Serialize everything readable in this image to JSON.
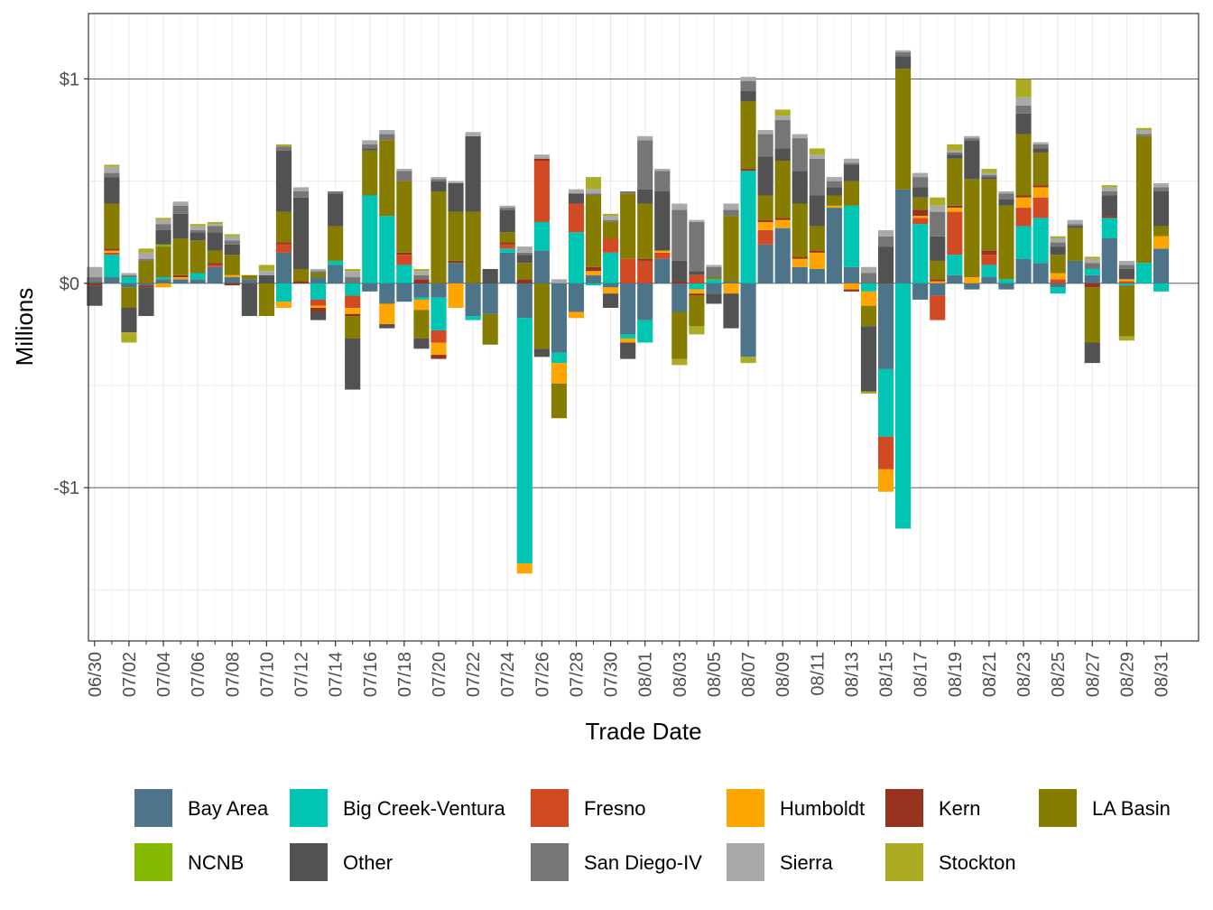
{
  "chart_data": {
    "type": "bar",
    "stacked": true,
    "title": "",
    "xlabel": "Trade Date",
    "ylabel": "Millions",
    "ylim": [
      -1.75,
      1.32
    ],
    "y_ticks": [
      {
        "value": 1,
        "label": "$1"
      },
      {
        "value": 0,
        "label": "$0"
      },
      {
        "value": -1,
        "label": "-$1"
      }
    ],
    "grid": true,
    "legend_position": "bottom",
    "categories": [
      "06/30",
      "07/01",
      "07/02",
      "07/03",
      "07/04",
      "07/05",
      "07/06",
      "07/07",
      "07/08",
      "07/09",
      "07/10",
      "07/11",
      "07/12",
      "07/13",
      "07/14",
      "07/15",
      "07/16",
      "07/17",
      "07/18",
      "07/19",
      "07/20",
      "07/21",
      "07/22",
      "07/23",
      "07/24",
      "07/25",
      "07/26",
      "07/27",
      "07/28",
      "07/29",
      "07/30",
      "07/31",
      "08/01",
      "08/02",
      "08/03",
      "08/04",
      "08/05",
      "08/06",
      "08/07",
      "08/08",
      "08/09",
      "08/10",
      "08/11",
      "08/12",
      "08/13",
      "08/14",
      "08/15",
      "08/16",
      "08/17",
      "08/18",
      "08/19",
      "08/20",
      "08/21",
      "08/22",
      "08/23",
      "08/24",
      "08/25",
      "08/26",
      "08/27",
      "08/28",
      "08/29",
      "08/30",
      "08/31"
    ],
    "tick_labels": [
      "06/30",
      "07/02",
      "07/04",
      "07/06",
      "07/08",
      "07/10",
      "07/12",
      "07/14",
      "07/16",
      "07/18",
      "07/20",
      "07/22",
      "07/24",
      "07/26",
      "07/28",
      "07/30",
      "08/01",
      "08/03",
      "08/05",
      "08/07",
      "08/09",
      "08/11",
      "08/13",
      "08/15",
      "08/17",
      "08/19",
      "08/21",
      "08/23",
      "08/25",
      "08/27",
      "08/29",
      "08/31"
    ],
    "series": [
      {
        "name": "Bay Area",
        "color": "#4e7489",
        "values": [
          0.01,
          0.03,
          -0.02,
          -0.01,
          0.02,
          0.02,
          0.02,
          0.08,
          0.03,
          0.02,
          0,
          0.15,
          0,
          0.03,
          0.09,
          0,
          -0.04,
          -0.1,
          -0.09,
          -0.07,
          -0.07,
          0.1,
          -0.16,
          -0.15,
          0.15,
          -0.17,
          0.16,
          -0.34,
          -0.14,
          0.04,
          -0.02,
          -0.25,
          -0.18,
          0.12,
          -0.14,
          0,
          -0.05,
          0.01,
          -0.36,
          0.19,
          0.27,
          0.08,
          0.07,
          0.37,
          0.08,
          0,
          -0.42,
          0.46,
          -0.08,
          -0.06,
          0.04,
          -0.03,
          0.03,
          -0.03,
          0.12,
          0.1,
          -0.02,
          0.11,
          0.04,
          0.22,
          0,
          0,
          0.17
        ]
      },
      {
        "name": "Big Creek-Ventura",
        "color": "#00c5b2",
        "values": [
          0,
          0.11,
          0.03,
          0,
          0.01,
          0,
          0.03,
          0,
          0,
          0,
          0,
          -0.09,
          0,
          -0.08,
          0.02,
          -0.06,
          0.43,
          0.33,
          0.09,
          -0.01,
          -0.16,
          0,
          -0.02,
          0,
          0.02,
          -1.2,
          0.14,
          -0.05,
          0.25,
          -0.01,
          0.15,
          -0.02,
          -0.11,
          0,
          0,
          -0.03,
          0.02,
          0,
          0.55,
          0,
          0,
          0,
          0,
          0,
          0.3,
          -0.04,
          -0.33,
          -1.2,
          0.29,
          0,
          0.1,
          0,
          0.06,
          0.02,
          0.16,
          0.22,
          -0.03,
          0,
          0.03,
          0.1,
          -0.01,
          0.1,
          -0.04
        ]
      },
      {
        "name": "Fresno",
        "color": "#d04a24",
        "values": [
          0,
          0.01,
          0,
          0,
          0,
          0,
          0,
          0.01,
          0,
          0,
          0,
          0.04,
          0,
          -0.03,
          0,
          -0.06,
          0,
          0,
          0.05,
          0,
          -0.06,
          0,
          0,
          0,
          0.02,
          0,
          0.3,
          0,
          0.14,
          0,
          0.07,
          0.12,
          0.11,
          0.03,
          0,
          0.04,
          0,
          0,
          0,
          0.07,
          0,
          0,
          0,
          0,
          0,
          0,
          -0.16,
          0,
          0.03,
          -0.12,
          0.21,
          0,
          0.05,
          0,
          0.09,
          0.1,
          0.02,
          0,
          0,
          0,
          0.01,
          0,
          0
        ]
      },
      {
        "name": "Humboldt",
        "color": "#ffa500",
        "values": [
          0,
          0.01,
          0,
          0,
          -0.02,
          0.01,
          0,
          0,
          0.01,
          0,
          0,
          -0.03,
          0,
          -0.01,
          0,
          -0.03,
          0,
          -0.1,
          0,
          -0.05,
          -0.06,
          -0.12,
          0,
          0,
          0,
          -0.05,
          0,
          -0.1,
          -0.03,
          0.02,
          -0.03,
          -0.02,
          0,
          0.01,
          0,
          -0.02,
          0,
          -0.05,
          0,
          0.04,
          0.04,
          0.04,
          0.08,
          0.01,
          -0.03,
          -0.07,
          -0.11,
          0,
          0.01,
          0.01,
          0.02,
          0.03,
          0,
          0,
          0.05,
          0.05,
          0.03,
          0,
          0,
          0,
          0.01,
          0,
          0.06
        ]
      },
      {
        "name": "Kern",
        "color": "#95331f",
        "values": [
          -0.01,
          0.01,
          0,
          -0.01,
          0,
          0.01,
          0,
          0.01,
          -0.01,
          0,
          0,
          0.01,
          0.01,
          -0.02,
          0,
          -0.01,
          0,
          0,
          0.01,
          0.02,
          -0.02,
          0.01,
          0,
          0,
          0.01,
          0.02,
          0.01,
          0,
          0,
          0.02,
          0,
          0,
          0.01,
          0,
          0.01,
          -0.01,
          0,
          0,
          0.01,
          0.01,
          0.01,
          0.01,
          0.01,
          0,
          -0.01,
          0,
          0,
          0,
          0.03,
          0.01,
          0.01,
          0,
          0.02,
          0,
          0.01,
          0.01,
          0,
          0,
          -0.02,
          0.01,
          0,
          0,
          0
        ]
      },
      {
        "name": "LA Basin",
        "color": "#857c00",
        "values": [
          0,
          0.22,
          -0.1,
          0.11,
          0.15,
          0.18,
          0.16,
          0.06,
          0.1,
          0.02,
          -0.16,
          0.15,
          0.06,
          0.02,
          0.17,
          -0.11,
          0.22,
          0.37,
          0.35,
          -0.14,
          0.45,
          0.24,
          0.35,
          -0.15,
          0.05,
          0.08,
          -0.32,
          -0.17,
          0,
          0.35,
          0.08,
          0.32,
          0.27,
          0,
          -0.23,
          -0.15,
          0.01,
          0.32,
          0.33,
          0.12,
          0.28,
          0.26,
          0.12,
          0.05,
          0.12,
          -0.1,
          0,
          0.59,
          0.06,
          0.09,
          0.23,
          0.48,
          0.35,
          0.36,
          0.3,
          0.16,
          0.09,
          0.16,
          -0.27,
          0,
          -0.25,
          0.62,
          0.05
        ]
      },
      {
        "name": "NCNB",
        "color": "#85b900",
        "values": [
          0,
          0,
          0,
          0,
          0.01,
          0,
          0,
          0,
          0,
          0,
          0,
          0,
          0,
          0,
          0,
          0,
          0,
          0,
          0,
          0,
          0,
          0,
          0,
          0,
          0,
          0,
          0,
          0,
          0,
          0,
          0,
          0,
          0,
          0,
          0,
          0,
          0,
          0,
          0,
          0,
          0,
          0,
          0,
          0,
          0,
          0,
          0,
          0,
          0,
          0,
          0,
          0,
          0,
          0,
          0,
          0,
          0,
          0,
          0,
          0,
          0,
          0,
          0
        ]
      },
      {
        "name": "Other",
        "color": "#525252",
        "values": [
          -0.1,
          0.13,
          -0.12,
          -0.14,
          0.07,
          0.12,
          0.04,
          0.09,
          0.05,
          -0.16,
          0.04,
          0.3,
          0.35,
          -0.04,
          0.16,
          -0.25,
          0.01,
          -0.02,
          0,
          -0.05,
          0.05,
          0.14,
          0.37,
          0.07,
          0.11,
          0.04,
          -0.04,
          0,
          0.05,
          0,
          -0.07,
          -0.08,
          0.07,
          0.29,
          0.1,
          0.02,
          -0.05,
          -0.17,
          0.05,
          0.19,
          0.06,
          0.16,
          0.15,
          0.04,
          0.08,
          -0.32,
          0.18,
          0.06,
          0.05,
          0.12,
          0.02,
          0.19,
          0.01,
          0.03,
          0.1,
          0.02,
          0.04,
          0.01,
          -0.1,
          0.1,
          0.05,
          0,
          0.17
        ]
      },
      {
        "name": "San Diego-IV",
        "color": "#767676",
        "values": [
          0.02,
          0.02,
          0.01,
          0.01,
          0.03,
          0.04,
          0.01,
          0.03,
          0.02,
          0,
          0,
          0.02,
          0.03,
          0.01,
          0.01,
          0.03,
          0.02,
          0.03,
          0.05,
          0.02,
          0.01,
          0,
          0,
          0,
          0.01,
          0.01,
          0,
          0,
          0,
          0.01,
          0.01,
          0.01,
          0.24,
          0.1,
          0.25,
          0.24,
          0.05,
          0.03,
          0.05,
          0.11,
          0.14,
          0.16,
          0.18,
          0.03,
          0.01,
          0.05,
          0.05,
          0.02,
          0.05,
          0.12,
          0.01,
          0.01,
          0.01,
          0.03,
          0.04,
          0.02,
          0.02,
          0.01,
          0.03,
          0.02,
          0.02,
          0.01,
          0.02
        ]
      },
      {
        "name": "Sierra",
        "color": "#a9a9a9",
        "values": [
          0.05,
          0.03,
          0.01,
          0.03,
          0.02,
          0.02,
          0.02,
          0.01,
          0.02,
          0,
          0.02,
          0,
          0.02,
          0.01,
          0,
          0.03,
          0.02,
          0.02,
          0.01,
          0.02,
          0.01,
          0.01,
          0.02,
          0,
          0.01,
          0.03,
          0.02,
          0.02,
          0.02,
          0.02,
          0.02,
          0,
          0.02,
          0.01,
          0.03,
          0.01,
          0.01,
          0.03,
          0.02,
          0.02,
          0.02,
          0.02,
          0.02,
          0.02,
          0.02,
          0.03,
          0.03,
          0.01,
          0.02,
          0.03,
          0.01,
          0.01,
          0.01,
          0.01,
          0.04,
          0.01,
          0.02,
          0.02,
          0.02,
          0.02,
          0.02,
          0.02,
          0.02
        ]
      },
      {
        "name": "Stockton",
        "color": "#abac23",
        "values": [
          0,
          0.01,
          -0.05,
          0.02,
          0.01,
          0,
          0.01,
          0.01,
          0.01,
          0,
          0.03,
          0.01,
          0,
          0,
          0,
          0.01,
          0,
          0,
          0,
          0.01,
          0,
          0,
          0,
          0,
          0,
          0,
          0,
          0,
          0,
          0.06,
          0.01,
          0,
          0,
          0,
          -0.03,
          -0.04,
          0,
          0,
          -0.03,
          0,
          0.03,
          0,
          0.03,
          0,
          0,
          -0.01,
          0,
          0,
          0,
          0.04,
          0.03,
          0,
          0.02,
          0,
          0.09,
          0,
          0.01,
          0,
          0.01,
          0.01,
          -0.02,
          0.01,
          0
        ]
      }
    ]
  }
}
